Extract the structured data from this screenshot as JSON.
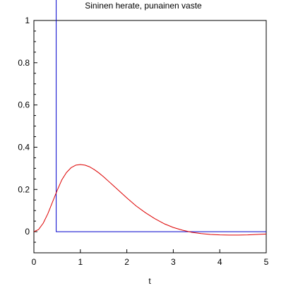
{
  "chart_data": {
    "type": "line",
    "title": "Sininen herate, punainen vaste",
    "xlabel": "t",
    "ylabel": "",
    "xlim": [
      0,
      5
    ],
    "ylim": [
      -0.1,
      1
    ],
    "grid": false,
    "legend": "none",
    "x_ticks": [
      0,
      1,
      2,
      3,
      4,
      5
    ],
    "y_ticks": [
      0,
      0.2,
      0.4,
      0.6,
      0.8,
      1
    ],
    "x_tick_labels": [
      "0",
      "1",
      "2",
      "3",
      "4",
      "5"
    ],
    "y_tick_labels": [
      "0",
      "0.2",
      "0.4",
      "0.6",
      "0.8",
      "1"
    ],
    "colors": {
      "frame": "#000000",
      "stimulus": "#0000cc",
      "response": "#dd0000"
    },
    "series": [
      {
        "color": "#0000cc",
        "x": [
          0.48,
          0.48,
          5.0
        ],
        "y": [
          1.1,
          0.0,
          0.0
        ]
      },
      {
        "color": "#dd0000",
        "x": [
          0.0,
          0.1,
          0.2,
          0.3,
          0.4,
          0.5,
          0.6,
          0.7,
          0.8,
          0.9,
          1.0,
          1.1,
          1.2,
          1.3,
          1.4,
          1.5,
          1.6,
          1.7,
          1.8,
          1.9,
          2.0,
          2.2,
          2.4,
          2.6,
          2.8,
          3.0,
          3.2,
          3.4,
          3.6,
          3.8,
          4.0,
          4.2,
          4.4,
          4.6,
          4.8,
          5.0
        ],
        "y": [
          0.0,
          0.01,
          0.04,
          0.085,
          0.14,
          0.195,
          0.245,
          0.28,
          0.303,
          0.315,
          0.318,
          0.315,
          0.307,
          0.294,
          0.278,
          0.26,
          0.24,
          0.22,
          0.2,
          0.18,
          0.16,
          0.122,
          0.09,
          0.062,
          0.038,
          0.02,
          0.007,
          -0.003,
          -0.009,
          -0.013,
          -0.015,
          -0.016,
          -0.016,
          -0.015,
          -0.013,
          -0.011
        ]
      }
    ]
  }
}
